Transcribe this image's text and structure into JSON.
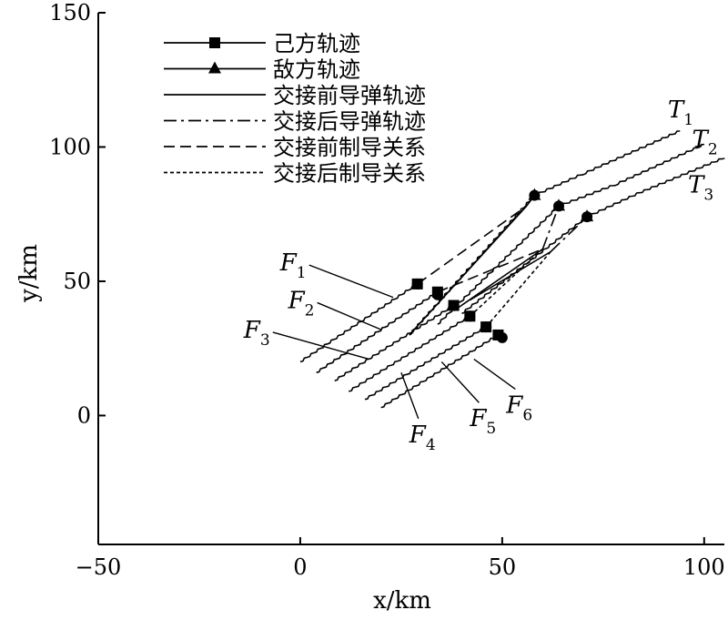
{
  "chart_data": {
    "type": "line",
    "xlabel": "x/km",
    "ylabel": "y/km",
    "xlim": [
      -50,
      105
    ],
    "ylim": [
      -48,
      150
    ],
    "xticks": [
      -50,
      0,
      50,
      100
    ],
    "yticks": [
      0,
      50,
      100,
      150
    ],
    "xtick_labels": [
      "−50",
      "0",
      "50",
      "100"
    ],
    "ytick_labels": [
      "0",
      "50",
      "100",
      "150"
    ],
    "legend_position": "top-left",
    "legend": [
      {
        "label": "己方轨迹",
        "style": "solid",
        "marker": "square"
      },
      {
        "label": "敌方轨迹",
        "style": "solid",
        "marker": "triangle"
      },
      {
        "label": "交接前导弹轨迹",
        "style": "solid",
        "marker": "none"
      },
      {
        "label": "交接后导弹轨迹",
        "style": "dashdot",
        "marker": "none"
      },
      {
        "label": "交接前制导关系",
        "style": "dashed",
        "marker": "none"
      },
      {
        "label": "交接后制导关系",
        "style": "dotted",
        "marker": "none"
      }
    ],
    "own_tracks": [
      {
        "name": "F1",
        "x": [
          0,
          29
        ],
        "y": [
          20,
          49
        ]
      },
      {
        "name": "F2",
        "x": [
          4,
          34
        ],
        "y": [
          16,
          46
        ]
      },
      {
        "name": "F3",
        "x": [
          8.5,
          38
        ],
        "y": [
          13,
          41
        ]
      },
      {
        "name": "F4",
        "x": [
          12,
          42
        ],
        "y": [
          9,
          37
        ]
      },
      {
        "name": "F5",
        "x": [
          16,
          46
        ],
        "y": [
          6,
          33
        ]
      },
      {
        "name": "F6",
        "x": [
          20,
          49
        ],
        "y": [
          3,
          30
        ]
      }
    ],
    "enemy_tracks": [
      {
        "name": "T1",
        "x": [
          27,
          58,
          70,
          94
        ],
        "y": [
          30,
          82,
          90,
          106
        ]
      },
      {
        "name": "T2",
        "x": [
          34,
          64,
          78,
          100
        ],
        "y": [
          34,
          78,
          86,
          101
        ]
      },
      {
        "name": "T3",
        "x": [
          40,
          71,
          84,
          105
        ],
        "y": [
          38,
          74,
          83,
          96
        ]
      }
    ],
    "missile_before_handover": [
      {
        "x": [
          27,
          56
        ],
        "y": [
          30,
          78
        ]
      },
      {
        "x": [
          38,
          60
        ],
        "y": [
          39,
          62
        ]
      },
      {
        "x": [
          42,
          62
        ],
        "y": [
          43,
          61
        ]
      }
    ],
    "missile_after_handover": [
      {
        "x": [
          56,
          58
        ],
        "y": [
          78,
          82
        ]
      },
      {
        "x": [
          60,
          64
        ],
        "y": [
          62,
          78
        ]
      },
      {
        "x": [
          62,
          71
        ],
        "y": [
          61,
          74
        ]
      }
    ],
    "guidance_before_handover": [
      {
        "x": [
          29,
          56
        ],
        "y": [
          49,
          78
        ]
      },
      {
        "x": [
          34,
          60
        ],
        "y": [
          46,
          62
        ]
      }
    ],
    "guidance_after_handover": [
      {
        "x": [
          42,
          60
        ],
        "y": [
          37,
          62
        ]
      },
      {
        "x": [
          46,
          62
        ],
        "y": [
          33,
          61
        ]
      }
    ],
    "hit_points": [
      {
        "x": 58,
        "y": 82
      },
      {
        "x": 64,
        "y": 78
      },
      {
        "x": 71,
        "y": 74
      },
      {
        "x": 29,
        "y": 49
      },
      {
        "x": 34,
        "y": 45
      },
      {
        "x": 38,
        "y": 41
      },
      {
        "x": 42,
        "y": 37
      },
      {
        "x": 46,
        "y": 33
      },
      {
        "x": 50,
        "y": 29
      }
    ],
    "annotations": [
      {
        "main": "F",
        "sub": "1",
        "x": -5,
        "y": 54,
        "to": [
          23,
          44
        ]
      },
      {
        "main": "F",
        "sub": "2",
        "x": -3,
        "y": 40,
        "to": [
          20,
          32
        ]
      },
      {
        "main": "F",
        "sub": "3",
        "x": -14,
        "y": 29,
        "to": [
          17,
          21
        ]
      },
      {
        "main": "F",
        "sub": "4",
        "x": 27,
        "y": -10,
        "to": [
          25,
          16
        ]
      },
      {
        "main": "F",
        "sub": "5",
        "x": 42,
        "y": -4,
        "to": [
          35,
          20
        ]
      },
      {
        "main": "F",
        "sub": "6",
        "x": 51,
        "y": 1,
        "to": [
          43,
          21
        ]
      },
      {
        "main": "T",
        "sub": "1",
        "x": 91,
        "y": 111,
        "to": null
      },
      {
        "main": "T",
        "sub": "2",
        "x": 97,
        "y": 100,
        "to": null
      },
      {
        "main": "T",
        "sub": "3",
        "x": 96,
        "y": 83,
        "to": null
      }
    ]
  }
}
